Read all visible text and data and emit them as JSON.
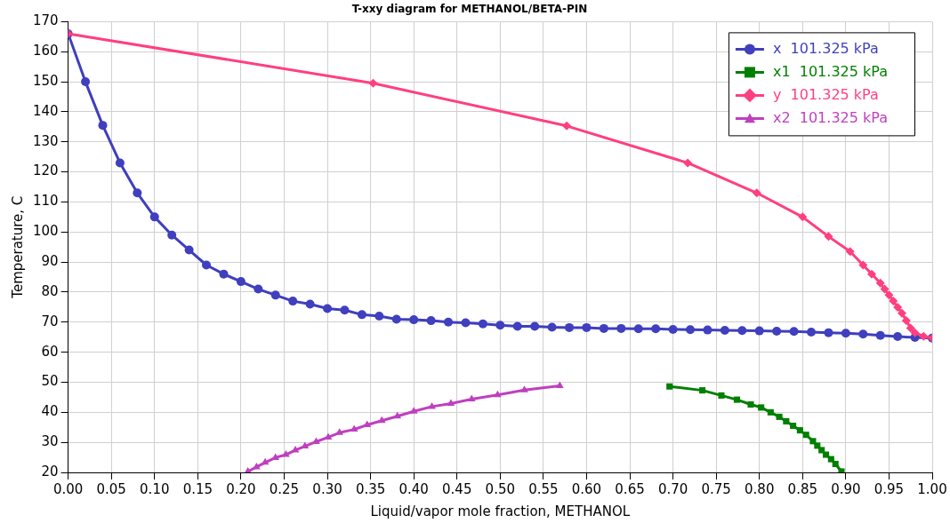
{
  "chart_data": {
    "type": "line",
    "title": "T-xxy diagram for METHANOL/BETA-PIN",
    "xlabel": "Liquid/vapor mole fraction, METHANOL",
    "ylabel": "Temperature, C",
    "xlim": [
      0,
      1
    ],
    "ylim": [
      20,
      170
    ],
    "xticks": [
      {
        "value": 0,
        "label": "0.00"
      },
      {
        "value": 0.05,
        "label": "0.05"
      },
      {
        "value": 0.1,
        "label": "0.10"
      },
      {
        "value": 0.15,
        "label": "0.15"
      },
      {
        "value": 0.2,
        "label": "0.20"
      },
      {
        "value": 0.25,
        "label": "0.25"
      },
      {
        "value": 0.3,
        "label": "0.30"
      },
      {
        "value": 0.35,
        "label": "0.35"
      },
      {
        "value": 0.4,
        "label": "0.40"
      },
      {
        "value": 0.45,
        "label": "0.45"
      },
      {
        "value": 0.5,
        "label": "0.50"
      },
      {
        "value": 0.55,
        "label": "0.55"
      },
      {
        "value": 0.6,
        "label": "0.60"
      },
      {
        "value": 0.65,
        "label": "0.65"
      },
      {
        "value": 0.7,
        "label": "0.70"
      },
      {
        "value": 0.75,
        "label": "0.75"
      },
      {
        "value": 0.8,
        "label": "0.80"
      },
      {
        "value": 0.85,
        "label": "0.85"
      },
      {
        "value": 0.9,
        "label": "0.90"
      },
      {
        "value": 0.95,
        "label": "0.95"
      },
      {
        "value": 1,
        "label": "1.00"
      }
    ],
    "yticks": [
      20,
      30,
      40,
      50,
      60,
      70,
      80,
      90,
      100,
      110,
      120,
      130,
      140,
      150,
      160,
      170
    ],
    "grid": true,
    "legend": "top right",
    "line_style": "solid",
    "series": [
      {
        "name": "x  101.325 kPa",
        "color": "#3f3fbf",
        "marker": "circle",
        "x": [
          0,
          0.02,
          0.04,
          0.06,
          0.08,
          0.1,
          0.12,
          0.14,
          0.16,
          0.18,
          0.2,
          0.22,
          0.24,
          0.26,
          0.28,
          0.3,
          0.32,
          0.34,
          0.36,
          0.38,
          0.4,
          0.42,
          0.44,
          0.46,
          0.48,
          0.5,
          0.52,
          0.54,
          0.56,
          0.58,
          0.6,
          0.62,
          0.64,
          0.66,
          0.68,
          0.7,
          0.72,
          0.74,
          0.76,
          0.78,
          0.8,
          0.82,
          0.84,
          0.86,
          0.88,
          0.9,
          0.92,
          0.94,
          0.96,
          0.98,
          1
        ],
        "values": [
          166,
          150,
          135.5,
          123,
          113,
          105,
          99,
          94,
          89,
          86,
          83.5,
          81,
          79,
          77,
          76,
          74.5,
          74,
          72.5,
          72,
          71,
          70.8,
          70.5,
          70,
          69.8,
          69.4,
          69,
          68.6,
          68.6,
          68.3,
          68.2,
          68.2,
          67.9,
          67.9,
          67.8,
          67.8,
          67.6,
          67.5,
          67.4,
          67.3,
          67.2,
          67.1,
          67,
          66.9,
          66.7,
          66.5,
          66.3,
          66,
          65.6,
          65.2,
          64.9,
          64.7
        ]
      },
      {
        "name": "x1  101.325 kPa",
        "color": "#007f00",
        "marker": "square",
        "x": [
          0.696,
          0.734,
          0.756,
          0.774,
          0.79,
          0.802,
          0.813,
          0.823,
          0.831,
          0.839,
          0.847,
          0.854,
          0.862,
          0.867,
          0.872,
          0.877,
          0.883,
          0.888,
          0.895
        ],
        "values": [
          48.6,
          47.3,
          45.6,
          44.2,
          42.6,
          41.6,
          40,
          38.5,
          37,
          35.5,
          34,
          32.5,
          30.4,
          28.9,
          27.4,
          25.9,
          24.4,
          22.8,
          20.3
        ]
      },
      {
        "name": "y  101.325 kPa",
        "color": "#ff3f7f",
        "marker": "diamond",
        "x": [
          0,
          0.353,
          0.577,
          0.717,
          0.797,
          0.85,
          0.88,
          0.905,
          0.92,
          0.93,
          0.94,
          0.945,
          0.95,
          0.955,
          0.96,
          0.965,
          0.97,
          0.975,
          0.98,
          0.99,
          1
        ],
        "values": [
          166,
          149.5,
          135.3,
          123,
          113,
          105,
          98.5,
          93.5,
          89,
          86,
          83,
          81,
          79,
          77,
          75,
          73,
          70.5,
          68,
          66.5,
          65.3,
          64.7
        ]
      },
      {
        "name": "x2  101.325 kPa",
        "color": "#bf3fbf",
        "marker": "triangle",
        "x": [
          0.208,
          0.218,
          0.228,
          0.24,
          0.252,
          0.263,
          0.274,
          0.287,
          0.301,
          0.314,
          0.331,
          0.346,
          0.363,
          0.381,
          0.4,
          0.421,
          0.443,
          0.467,
          0.497,
          0.528,
          0.569
        ],
        "values": [
          20.3,
          21.8,
          23.3,
          24.9,
          25.9,
          27.4,
          28.7,
          30.2,
          31.7,
          33.2,
          34.3,
          35.8,
          37.2,
          38.7,
          40.3,
          41.9,
          42.9,
          44.4,
          45.8,
          47.4,
          48.8
        ]
      }
    ]
  }
}
